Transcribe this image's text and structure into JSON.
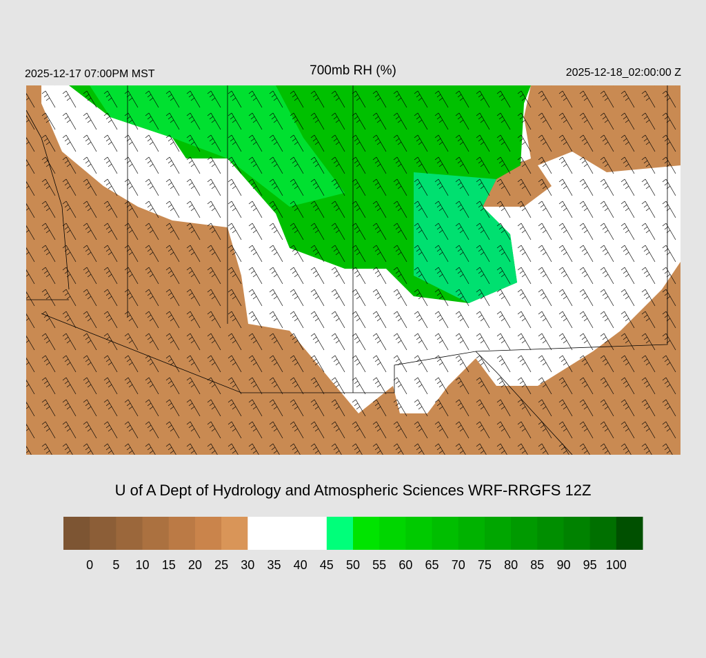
{
  "header": {
    "local_time": "2025-12-17 07:00PM MST",
    "title": "700mb RH (%)",
    "valid_time": "2025-12-18_02:00:00 Z"
  },
  "credit": "U of A Dept of Hydrology and Atmospheric Sciences WRF-RRGFS 12Z",
  "colorbar": {
    "colors": [
      "#7d5533",
      "#8c5e37",
      "#9b673b",
      "#ab7140",
      "#bb7a45",
      "#ca844b",
      "#d99558",
      "#ffffff",
      "#ffffff",
      "#ffffff",
      "#00ff7a",
      "#00e400",
      "#00d600",
      "#00ca00",
      "#00be00",
      "#00b200",
      "#00a600",
      "#009a00",
      "#008e00",
      "#008200",
      "#007000",
      "#005000"
    ],
    "ticks": [
      0,
      5,
      10,
      15,
      20,
      25,
      30,
      35,
      40,
      45,
      50,
      55,
      60,
      65,
      70,
      75,
      80,
      85,
      90,
      95,
      100
    ]
  }
}
